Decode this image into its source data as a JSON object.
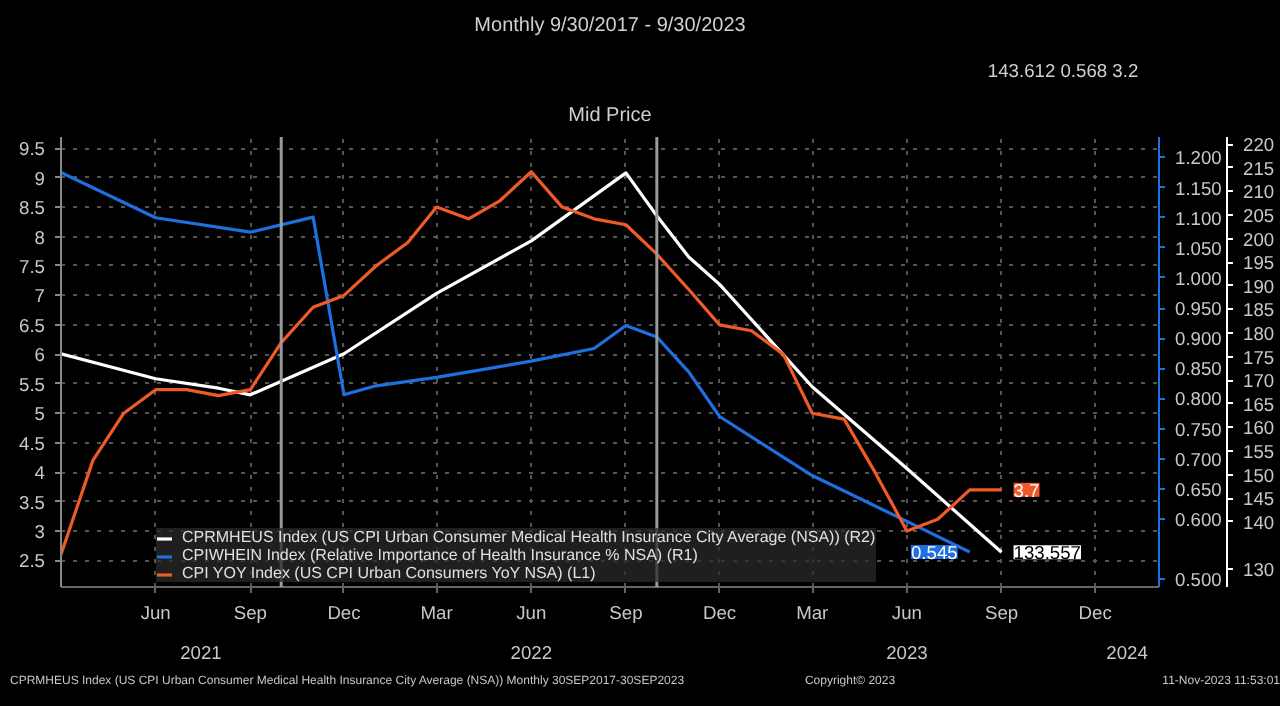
{
  "chart_data": {
    "type": "line",
    "title": "Monthly 9/30/2017 - 9/30/2023",
    "subtitle": "Mid Price",
    "xlim": [
      "2021-03",
      "2024-02"
    ],
    "xticks": [
      {
        "value": "2021-06",
        "label": "Jun"
      },
      {
        "value": "2021-09",
        "label": "Sep"
      },
      {
        "value": "2021-12",
        "label": "Dec"
      },
      {
        "value": "2022-03",
        "label": "Mar"
      },
      {
        "value": "2022-06",
        "label": "Jun"
      },
      {
        "value": "2022-09",
        "label": "Sep"
      },
      {
        "value": "2022-12",
        "label": "Dec"
      },
      {
        "value": "2023-03",
        "label": "Mar"
      },
      {
        "value": "2023-06",
        "label": "Jun"
      },
      {
        "value": "2023-09",
        "label": "Sep"
      },
      {
        "value": "2023-12",
        "label": "Dec"
      }
    ],
    "x2lim": [
      "2021-03",
      "2024-02"
    ],
    "x2ticks": [
      {
        "value": "2021-07-15",
        "label": "2021"
      },
      {
        "value": "2022-06",
        "label": "2022"
      },
      {
        "value": "2023-06",
        "label": "2023"
      },
      {
        "value": "2024-01",
        "label": "2024"
      }
    ],
    "ylim": [
      2.05,
      9.69
    ],
    "yticks": [
      2.5,
      3,
      3.5,
      4,
      4.5,
      5,
      5.5,
      6,
      6.5,
      7,
      7.5,
      8,
      8.5,
      9,
      9.5
    ],
    "y2lim": [
      0.487,
      1.234
    ],
    "y2ticks": [
      {
        "value": 0.5,
        "label": "0.500"
      },
      {
        "value": 0.6,
        "label": "0.600"
      },
      {
        "value": 0.65,
        "label": "0.650"
      },
      {
        "value": 0.7,
        "label": "0.700"
      },
      {
        "value": 0.75,
        "label": "0.750"
      },
      {
        "value": 0.8,
        "label": "0.800"
      },
      {
        "value": 0.85,
        "label": "0.850"
      },
      {
        "value": 0.9,
        "label": "0.900"
      },
      {
        "value": 0.95,
        "label": "0.950"
      },
      {
        "value": 1.0,
        "label": "1.000"
      },
      {
        "value": 1.05,
        "label": "1.050"
      },
      {
        "value": 1.1,
        "label": "1.100"
      },
      {
        "value": 1.15,
        "label": "1.150"
      },
      {
        "value": 1.2,
        "label": "1.200"
      }
    ],
    "y3lim": [
      126.2,
      221.5
    ],
    "y3ticks": [
      {
        "value": 130,
        "label": "130"
      },
      {
        "value": 140,
        "label": "140"
      },
      {
        "value": 145,
        "label": "145"
      },
      {
        "value": 150,
        "label": "150"
      },
      {
        "value": 155,
        "label": "155"
      },
      {
        "value": 160,
        "label": "160"
      },
      {
        "value": 165,
        "label": "165"
      },
      {
        "value": 170,
        "label": "170"
      },
      {
        "value": 175,
        "label": "175"
      },
      {
        "value": 180,
        "label": "180"
      },
      {
        "value": 185,
        "label": "185"
      },
      {
        "value": 190,
        "label": "190"
      },
      {
        "value": 195,
        "label": "195"
      },
      {
        "value": 200,
        "label": "200"
      },
      {
        "value": 205,
        "label": "205"
      },
      {
        "value": 210,
        "label": "210"
      },
      {
        "value": 215,
        "label": "215"
      },
      {
        "value": 220,
        "label": "220"
      }
    ],
    "grid": true,
    "legend": "bottom left",
    "ref_lines": [
      {
        "axis": "x",
        "value": "2021-10",
        "label": null,
        "color": "#9a9a9a"
      },
      {
        "axis": "x",
        "value": "2022-10",
        "label": null,
        "color": "#9a9a9a"
      }
    ],
    "series": [
      {
        "name": "CPRMHEUS Index (US CPI Urban Consumer Medical Health Insurance City Average (NSA)) (R2)",
        "color": "#ffffff",
        "axis": "y3",
        "x": [
          "2021-03",
          "2021-06",
          "2021-08",
          "2021-09",
          "2021-12",
          "2022-03",
          "2022-06",
          "2022-09",
          "2022-10",
          "2022-11",
          "2022-12",
          "2023-03",
          "2023-06",
          "2023-09"
        ],
        "values": [
          175.6,
          170.3,
          168.3,
          166.9,
          175.6,
          188.4,
          199.5,
          213.9,
          204.8,
          196.1,
          190.3,
          168.6,
          151.3,
          133.557
        ],
        "value_labels": [
          null,
          null,
          null,
          null,
          null,
          null,
          null,
          null,
          null,
          null,
          null,
          null,
          null,
          "133.557"
        ]
      },
      {
        "name": "CPIWHEIN Index (Relative Importance of Health Insurance % NSA) (R1)",
        "color": "#1e6fe0",
        "axis": "y2",
        "x": [
          "2021-03",
          "2021-06",
          "2021-09",
          "2021-11",
          "2021-12",
          "2022-01",
          "2022-03",
          "2022-06",
          "2022-08",
          "2022-09",
          "2022-10",
          "2022-11",
          "2022-12",
          "2023-03",
          "2023-06",
          "2023-08"
        ],
        "values": [
          1.175,
          1.1,
          1.076,
          1.101,
          0.806,
          0.821,
          0.835,
          0.862,
          0.883,
          0.921,
          0.902,
          0.844,
          0.77,
          0.672,
          0.596,
          0.545
        ],
        "value_labels": [
          null,
          null,
          null,
          null,
          null,
          null,
          null,
          null,
          null,
          null,
          null,
          null,
          null,
          null,
          null,
          "0.545"
        ]
      },
      {
        "name": "CPI YOY Index (US CPI Urban Consumers YoY NSA) (L1)",
        "color": "#f05a28",
        "x": [
          "2021-03",
          "2021-04",
          "2021-05",
          "2021-06",
          "2021-07",
          "2021-08",
          "2021-09",
          "2021-10",
          "2021-11",
          "2021-12",
          "2022-01",
          "2022-02",
          "2022-03",
          "2022-04",
          "2022-05",
          "2022-06",
          "2022-07",
          "2022-08",
          "2022-09",
          "2022-10",
          "2022-11",
          "2022-12",
          "2023-01",
          "2023-02",
          "2023-03",
          "2023-04",
          "2023-05",
          "2023-06",
          "2023-07",
          "2023-08",
          "2023-09"
        ],
        "values": [
          2.6,
          4.2,
          5.0,
          5.4,
          5.4,
          5.3,
          5.4,
          6.2,
          6.8,
          7.0,
          7.5,
          7.9,
          8.5,
          8.3,
          8.6,
          9.1,
          8.5,
          8.3,
          8.2,
          7.7,
          7.1,
          6.5,
          6.4,
          6.0,
          5.0,
          4.9,
          4.0,
          3.0,
          3.2,
          3.7,
          3.7
        ],
        "value_labels": [
          null,
          null,
          null,
          null,
          null,
          null,
          null,
          null,
          null,
          null,
          null,
          null,
          null,
          null,
          null,
          null,
          null,
          null,
          null,
          null,
          null,
          null,
          null,
          null,
          null,
          null,
          null,
          null,
          null,
          null,
          "3.7"
        ]
      }
    ],
    "annotations": [
      "143.612",
      "0.568",
      "3.2",
      "CPRMHEUS Index (US CPI Urban Consumer Medical Health Insurance City Average (NSA)) Monthly 30SEP2017-30SEP2023",
      "Copyright© 2023",
      "11-Nov-2023 11:53:01"
    ]
  }
}
